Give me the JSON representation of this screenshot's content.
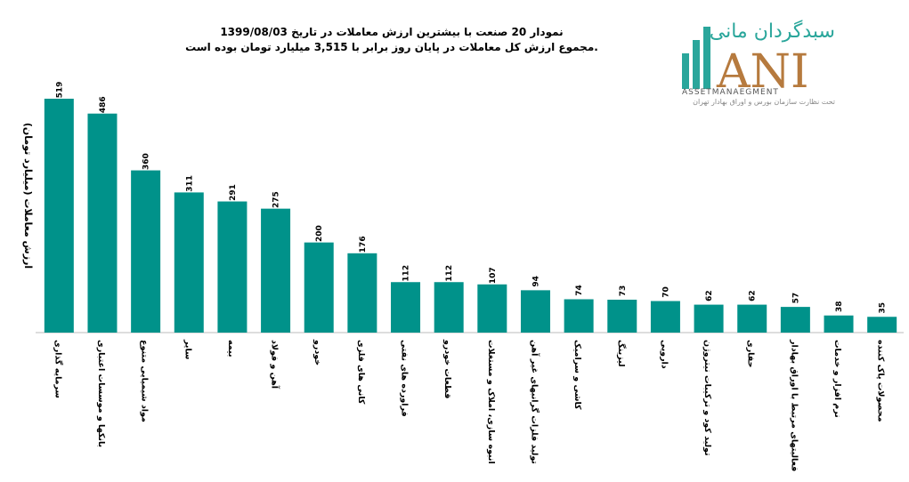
{
  "chart_data": {
    "type": "bar",
    "title": "نمودار  20 صنعت با بیشترین ارزش معاملات در تاریخ 1399/08/03",
    "subtitle": "مجموع ارزش  کل معاملات در پایان روز برابر با 3,515 میلیارد تومان بوده است.",
    "y_label": "ارزش معاملات (میلیارد تومان)",
    "color": "#00928a",
    "categories": [
      "سرمایه گذاری",
      "بانکها و موسسات اعتباری",
      "مواد شیمیایی متنوع",
      "سایر",
      "بیمه",
      "آهن و فولاد",
      "خودرو",
      "کانی های فلزی",
      "فراورده های نفتی",
      "قطعات خودرو",
      "انبوه سازی، املاک و مستغلات",
      "تولید فلزات گرانبهای غیر آهن",
      "کاشی و سرامیک",
      "لیزینگ",
      "دارویی",
      "تولید کود و ترکیبات نیتروژن",
      "حفاری",
      "فعالیتهای مرتبط با اوراق بهادار",
      "نرم افزار و خدمات",
      "محصولات پاک کننده"
    ],
    "values": [
      519,
      486,
      360,
      311,
      291,
      275,
      200,
      176,
      112,
      112,
      107,
      94,
      74,
      73,
      70,
      62,
      62,
      57,
      38,
      35
    ]
  },
  "logo": {
    "name": "سبدگردان مانی",
    "mark": "ANI",
    "english": "ASSETMANAEGMENT",
    "note": "تحت نظارت سازمان بورس و اوراق بهادار تهران"
  }
}
